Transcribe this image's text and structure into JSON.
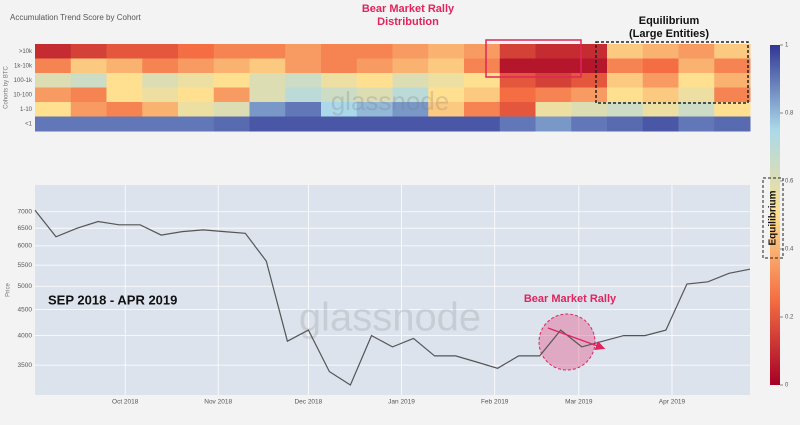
{
  "chart_data": [
    {
      "type": "heatmap",
      "title": "Accumulation Trend Score by Cohort",
      "y_label": "Cohorts by BTC",
      "colorscale": [
        "#a50026",
        "#f46d43",
        "#fee090",
        "#abd9e9",
        "#313695"
      ],
      "clim": [
        0,
        1
      ],
      "cticks": [
        0,
        0.2,
        0.4,
        0.6,
        0.8,
        1
      ],
      "series": [
        {
          "name": ">10k",
          "values": [
            0.1,
            0.15,
            0.2,
            0.2,
            0.25,
            0.3,
            0.3,
            0.35,
            0.3,
            0.3,
            0.35,
            0.4,
            0.35,
            0.15,
            0.1,
            0.1,
            0.45,
            0.4,
            0.35,
            0.45
          ]
        },
        {
          "name": "1k-10k",
          "values": [
            0.3,
            0.45,
            0.4,
            0.3,
            0.35,
            0.4,
            0.45,
            0.35,
            0.3,
            0.35,
            0.4,
            0.45,
            0.3,
            0.05,
            0.05,
            0.05,
            0.3,
            0.25,
            0.4,
            0.3
          ]
        },
        {
          "name": "100-1k",
          "values": [
            0.6,
            0.65,
            0.5,
            0.6,
            0.55,
            0.5,
            0.6,
            0.65,
            0.55,
            0.5,
            0.6,
            0.55,
            0.5,
            0.2,
            0.15,
            0.2,
            0.45,
            0.35,
            0.5,
            0.4
          ]
        },
        {
          "name": "10-100",
          "values": [
            0.35,
            0.3,
            0.5,
            0.55,
            0.5,
            0.35,
            0.6,
            0.7,
            0.65,
            0.6,
            0.7,
            0.5,
            0.45,
            0.25,
            0.3,
            0.35,
            0.5,
            0.45,
            0.55,
            0.3
          ]
        },
        {
          "name": "1-10",
          "values": [
            0.5,
            0.35,
            0.3,
            0.4,
            0.55,
            0.6,
            0.85,
            0.9,
            0.75,
            0.8,
            0.85,
            0.45,
            0.3,
            0.2,
            0.55,
            0.6,
            0.65,
            0.55,
            0.65,
            0.5
          ]
        },
        {
          "name": "<1",
          "values": [
            0.9,
            0.9,
            0.9,
            0.9,
            0.9,
            0.92,
            0.95,
            0.95,
            0.95,
            0.95,
            0.95,
            0.95,
            0.95,
            0.9,
            0.85,
            0.9,
            0.92,
            0.95,
            0.9,
            0.92
          ]
        }
      ],
      "annotations": [
        {
          "text": "Bear Market Rally"
        },
        {
          "text": "Distribution"
        },
        {
          "text": "Equilibrium"
        },
        {
          "text": "(Large Entities)"
        },
        {
          "text": "glassnode"
        }
      ]
    },
    {
      "type": "line",
      "y_label": "Price",
      "color": "#555555",
      "log_scale": true,
      "grid": true,
      "values": [
        7050,
        6250,
        6500,
        6700,
        6600,
        6600,
        6300,
        6400,
        6450,
        6400,
        6350,
        5600,
        3900,
        4100,
        3400,
        3200,
        4000,
        3800,
        3950,
        3650,
        3650,
        3550,
        3450,
        3650,
        3650,
        4100,
        3800,
        3900,
        4000,
        4000,
        4100,
        5050,
        5100,
        5300,
        5400
      ],
      "xlim": [
        0,
        34
      ],
      "ylim": [
        3100,
        7900
      ],
      "yticks": [
        3500,
        4000,
        4500,
        5000,
        5500,
        6000,
        6500,
        7000
      ],
      "xticks": [
        {
          "value": 4.29,
          "label": "Oct 2018"
        },
        {
          "value": 8.71,
          "label": "Nov 2018"
        },
        {
          "value": 13,
          "label": "Dec 2018"
        },
        {
          "value": 17.43,
          "label": "Jan 2019"
        },
        {
          "value": 21.86,
          "label": "Feb 2019"
        },
        {
          "value": 25.86,
          "label": "Mar 2019"
        },
        {
          "value": 30.29,
          "label": "Apr 2019"
        }
      ],
      "annotations": [
        {
          "text": "SEP 2018 - APR 2019"
        },
        {
          "text": "Bear Market Rally"
        },
        {
          "text": "Equilibrium"
        },
        {
          "text": "glassnode"
        }
      ]
    }
  ]
}
